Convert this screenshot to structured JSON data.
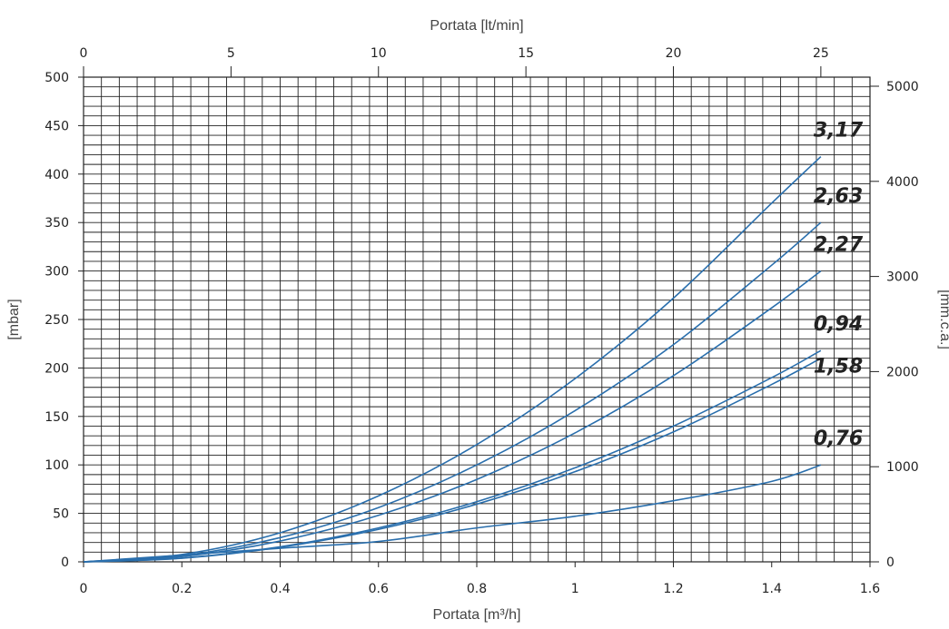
{
  "chart_data": {
    "type": "line",
    "title": "",
    "xlabel_bottom": "Portata [m³/h]",
    "xlabel_top": "Portata [lt/min]",
    "ylabel_left": "[mbar]",
    "ylabel_right": "[mm.c.a.]",
    "xlim": [
      0,
      1.6
    ],
    "ylim": [
      0,
      500
    ],
    "x_ticks": [
      "0",
      "0.2",
      "0.4",
      "0.6",
      "0.8",
      "1",
      "1.2",
      "1.4",
      "1.6"
    ],
    "y_ticks": [
      "0",
      "50",
      "100",
      "150",
      "200",
      "250",
      "300",
      "350",
      "400",
      "450",
      "500"
    ],
    "top_ticks": [
      "0",
      "5",
      "10",
      "15",
      "20",
      "25"
    ],
    "top_tick_values": [
      0,
      5,
      10,
      15,
      20,
      25
    ],
    "right_ticks": [
      "0",
      "1000",
      "2000",
      "3000",
      "4000",
      "5000"
    ],
    "right_tick_values": [
      0,
      1000,
      2000,
      3000,
      4000,
      5000
    ],
    "grid": true,
    "line_color": "#2a6fad",
    "series": [
      {
        "name": "3,17",
        "x": [
          0,
          0.2,
          0.4,
          0.6,
          0.8,
          1.0,
          1.2,
          1.4,
          1.5
        ],
        "values": [
          0,
          7.6,
          30,
          68,
          121,
          189,
          272,
          370,
          418
        ]
      },
      {
        "name": "2,63",
        "x": [
          0,
          0.2,
          0.4,
          0.6,
          0.8,
          1.0,
          1.2,
          1.4,
          1.5
        ],
        "values": [
          0,
          6.3,
          25,
          56,
          100,
          156,
          224,
          306,
          350
        ]
      },
      {
        "name": "2,27",
        "x": [
          0,
          0.2,
          0.4,
          0.6,
          0.8,
          1.0,
          1.2,
          1.4,
          1.5
        ],
        "values": [
          0,
          5.4,
          21.5,
          48,
          85,
          133,
          192,
          262,
          300
        ]
      },
      {
        "name": "0,94",
        "x": [
          0,
          0.2,
          0.4,
          0.6,
          0.8,
          1.0,
          1.2,
          1.4,
          1.5
        ],
        "values": [
          0,
          3.9,
          15.5,
          35,
          62,
          97,
          140,
          190,
          218
        ]
      },
      {
        "name": "1,58",
        "x": [
          0,
          0.2,
          0.4,
          0.6,
          0.8,
          1.0,
          1.2,
          1.4,
          1.5
        ],
        "values": [
          0,
          3.7,
          15,
          33.5,
          59.5,
          93,
          134,
          183,
          210
        ]
      },
      {
        "name": "0,76",
        "x": [
          0,
          0.2,
          0.4,
          0.6,
          0.8,
          1.0,
          1.2,
          1.4,
          1.5
        ],
        "values": [
          0,
          7,
          14,
          21,
          35,
          47,
          63,
          83,
          100
        ]
      }
    ]
  }
}
